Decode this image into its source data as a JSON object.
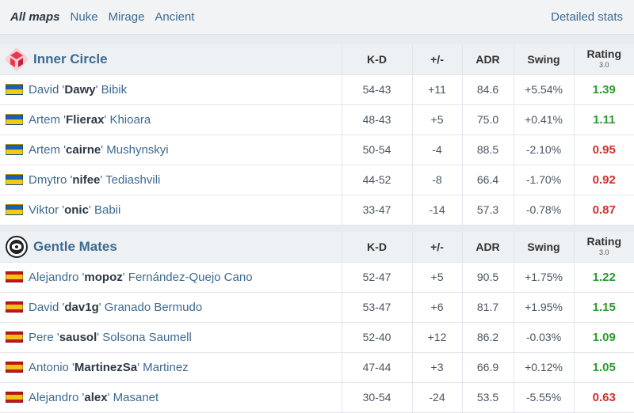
{
  "maps_bar": {
    "tabs": [
      {
        "label": "All maps"
      },
      {
        "label": "Nuke"
      },
      {
        "label": "Mirage"
      },
      {
        "label": "Ancient"
      }
    ],
    "detailed_label": "Detailed stats"
  },
  "columns": {
    "kd": "K-D",
    "pm": "+/-",
    "adr": "ADR",
    "swing": "Swing",
    "rating": "Rating",
    "rating_version": "3.0"
  },
  "teams": [
    {
      "name": "Inner Circle",
      "logo_icon": "inner-circle-logo",
      "players": [
        {
          "first": "David",
          "nick": "Dawy",
          "last": "Bibik",
          "flag": "ukraine-flag",
          "kd": "54-43",
          "pm": "+11",
          "adr": "84.6",
          "swing": "+5.54%",
          "rating": "1.39"
        },
        {
          "first": "Artem",
          "nick": "Flierax",
          "last": "Khioara",
          "flag": "ukraine-flag",
          "kd": "48-43",
          "pm": "+5",
          "adr": "75.0",
          "swing": "+0.41%",
          "rating": "1.11"
        },
        {
          "first": "Artem",
          "nick": "cairne",
          "last": "Mushynskyi",
          "flag": "ukraine-flag",
          "kd": "50-54",
          "pm": "-4",
          "adr": "88.5",
          "swing": "-2.10%",
          "rating": "0.95"
        },
        {
          "first": "Dmytro",
          "nick": "nifee",
          "last": "Tediashvili",
          "flag": "ukraine-flag",
          "kd": "44-52",
          "pm": "-8",
          "adr": "66.4",
          "swing": "-1.70%",
          "rating": "0.92"
        },
        {
          "first": "Viktor",
          "nick": "onic",
          "last": "Babii",
          "flag": "ukraine-flag",
          "kd": "33-47",
          "pm": "-14",
          "adr": "57.3",
          "swing": "-0.78%",
          "rating": "0.87"
        }
      ]
    },
    {
      "name": "Gentle Mates",
      "logo_icon": "gentle-mates-logo",
      "players": [
        {
          "first": "Alejandro",
          "nick": "mopoz",
          "last": "Fernández-Quejo Cano",
          "flag": "spain-flag",
          "kd": "52-47",
          "pm": "+5",
          "adr": "90.5",
          "swing": "+1.75%",
          "rating": "1.22"
        },
        {
          "first": "David",
          "nick": "dav1g",
          "last": "Granado Bermudo",
          "flag": "spain-flag",
          "kd": "53-47",
          "pm": "+6",
          "adr": "81.7",
          "swing": "+1.95%",
          "rating": "1.15"
        },
        {
          "first": "Pere",
          "nick": "sausol",
          "last": "Solsona Saumell",
          "flag": "spain-flag",
          "kd": "52-40",
          "pm": "+12",
          "adr": "86.2",
          "swing": "-0.03%",
          "rating": "1.09"
        },
        {
          "first": "Antonio",
          "nick": "MartinezSa",
          "last": "Martinez",
          "flag": "spain-flag",
          "kd": "47-44",
          "pm": "+3",
          "adr": "66.9",
          "swing": "+0.12%",
          "rating": "1.05"
        },
        {
          "first": "Alejandro",
          "nick": "alex",
          "last": "Masanet",
          "flag": "spain-flag",
          "kd": "30-54",
          "pm": "-24",
          "adr": "53.5",
          "swing": "-5.55%",
          "rating": "0.63"
        }
      ]
    }
  ],
  "colors": {
    "positive": "#2f9a2f",
    "negative": "#d0312d",
    "link": "#3d6a91"
  }
}
